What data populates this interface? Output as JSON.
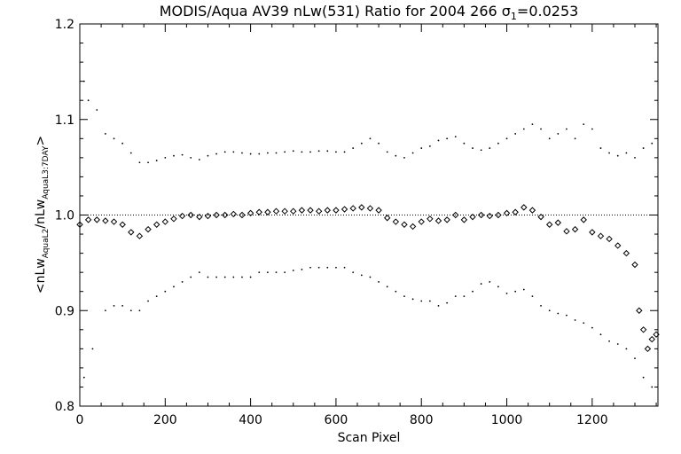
{
  "chart_data": {
    "type": "scatter",
    "title_prefix": "MODIS/Aqua AV39 nLw(531) Ratio for 2004 266 ",
    "title_sigma_symbol": "σ",
    "title_sigma_sub": "1",
    "title_suffix": "=0.0253",
    "xlabel": "Scan Pixel",
    "ylabel": {
      "lead": "<nLw",
      "sub1": "AquaL2",
      "mid": "/nLw",
      "sub2": "AquaL3:7DAY",
      "tail": ">"
    },
    "xlim": [
      0,
      1354
    ],
    "ylim": [
      0.8,
      1.2
    ],
    "xticks": [
      0,
      200,
      400,
      600,
      800,
      1000,
      1200
    ],
    "xtick_labels": [
      "0",
      "200",
      "400",
      "600",
      "800",
      "1000",
      "1200"
    ],
    "yticks": [
      0.8,
      0.9,
      1.0,
      1.1,
      1.2
    ],
    "ytick_labels": [
      "0.8",
      "0.9",
      "1.0",
      "1.1",
      "1.2"
    ],
    "reference_line": 1.0,
    "grid": false,
    "series": [
      {
        "marker": "diamond",
        "x": [
          0,
          20,
          40,
          60,
          80,
          100,
          120,
          140,
          160,
          180,
          200,
          220,
          240,
          260,
          280,
          300,
          320,
          340,
          360,
          380,
          400,
          420,
          440,
          460,
          480,
          500,
          520,
          540,
          560,
          580,
          600,
          620,
          640,
          660,
          680,
          700,
          720,
          740,
          760,
          780,
          800,
          820,
          840,
          860,
          880,
          900,
          920,
          940,
          960,
          980,
          1000,
          1020,
          1040,
          1060,
          1080,
          1100,
          1120,
          1140,
          1160,
          1180,
          1200,
          1220,
          1240,
          1260,
          1280,
          1300,
          1310,
          1320,
          1330,
          1340,
          1350
        ],
        "y": [
          0.99,
          0.995,
          0.995,
          0.994,
          0.993,
          0.99,
          0.982,
          0.978,
          0.985,
          0.99,
          0.993,
          0.996,
          0.999,
          1.0,
          0.998,
          0.999,
          1.0,
          1.0,
          1.001,
          1.0,
          1.002,
          1.003,
          1.003,
          1.004,
          1.004,
          1.004,
          1.005,
          1.005,
          1.004,
          1.005,
          1.005,
          1.006,
          1.007,
          1.008,
          1.007,
          1.005,
          0.997,
          0.993,
          0.99,
          0.988,
          0.993,
          0.996,
          0.994,
          0.995,
          1.0,
          0.995,
          0.998,
          1.0,
          0.999,
          1.0,
          1.002,
          1.003,
          1.008,
          1.005,
          0.998,
          0.99,
          0.992,
          0.983,
          0.985,
          0.995,
          0.982,
          0.978,
          0.975,
          0.968,
          0.96,
          0.948,
          0.9,
          0.88,
          0.86,
          0.87,
          0.875
        ]
      },
      {
        "marker": "dot",
        "x": [
          10,
          20,
          40,
          60,
          80,
          100,
          120,
          140,
          160,
          180,
          200,
          220,
          240,
          260,
          280,
          300,
          320,
          340,
          360,
          380,
          400,
          420,
          440,
          460,
          480,
          500,
          520,
          540,
          560,
          580,
          600,
          620,
          640,
          660,
          680,
          700,
          720,
          740,
          760,
          780,
          800,
          820,
          840,
          860,
          880,
          900,
          920,
          940,
          960,
          980,
          1000,
          1020,
          1040,
          1060,
          1080,
          1100,
          1120,
          1140,
          1160,
          1180,
          1200,
          1220,
          1240,
          1260,
          1280,
          1300,
          1320,
          1340
        ],
        "y": [
          1.14,
          1.12,
          1.11,
          1.085,
          1.08,
          1.075,
          1.065,
          1.055,
          1.055,
          1.057,
          1.06,
          1.062,
          1.063,
          1.06,
          1.058,
          1.062,
          1.064,
          1.066,
          1.066,
          1.065,
          1.064,
          1.064,
          1.065,
          1.065,
          1.066,
          1.067,
          1.066,
          1.066,
          1.067,
          1.067,
          1.066,
          1.066,
          1.07,
          1.075,
          1.08,
          1.075,
          1.066,
          1.062,
          1.06,
          1.065,
          1.07,
          1.072,
          1.078,
          1.08,
          1.082,
          1.075,
          1.07,
          1.068,
          1.07,
          1.075,
          1.08,
          1.085,
          1.09,
          1.095,
          1.09,
          1.08,
          1.085,
          1.09,
          1.08,
          1.095,
          1.09,
          1.07,
          1.065,
          1.062,
          1.065,
          1.06,
          1.07,
          1.075
        ]
      },
      {
        "marker": "dot",
        "x": [
          10,
          30,
          60,
          80,
          100,
          120,
          140,
          160,
          180,
          200,
          220,
          240,
          260,
          280,
          300,
          320,
          340,
          360,
          380,
          400,
          420,
          440,
          460,
          480,
          500,
          520,
          540,
          560,
          580,
          600,
          620,
          640,
          660,
          680,
          700,
          720,
          740,
          760,
          780,
          800,
          820,
          840,
          860,
          880,
          900,
          920,
          940,
          960,
          980,
          1000,
          1020,
          1040,
          1060,
          1080,
          1100,
          1120,
          1140,
          1160,
          1180,
          1200,
          1220,
          1240,
          1260,
          1280,
          1300,
          1320,
          1340
        ],
        "y": [
          0.83,
          0.86,
          0.9,
          0.905,
          0.905,
          0.9,
          0.9,
          0.91,
          0.915,
          0.92,
          0.925,
          0.93,
          0.935,
          0.94,
          0.935,
          0.935,
          0.935,
          0.935,
          0.935,
          0.935,
          0.94,
          0.94,
          0.94,
          0.94,
          0.942,
          0.943,
          0.945,
          0.945,
          0.945,
          0.945,
          0.945,
          0.94,
          0.937,
          0.935,
          0.93,
          0.925,
          0.92,
          0.915,
          0.912,
          0.91,
          0.91,
          0.905,
          0.908,
          0.915,
          0.915,
          0.92,
          0.928,
          0.93,
          0.925,
          0.918,
          0.92,
          0.922,
          0.915,
          0.905,
          0.9,
          0.897,
          0.895,
          0.89,
          0.887,
          0.882,
          0.875,
          0.868,
          0.865,
          0.86,
          0.85,
          0.83,
          0.82
        ]
      }
    ]
  }
}
